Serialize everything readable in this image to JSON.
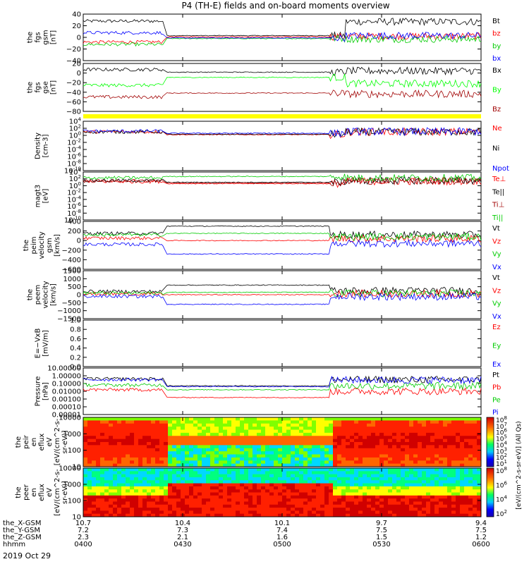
{
  "figure": {
    "title": "P4 (TH-E) fields and on-board moments overview",
    "date": "2019 Oct 29"
  },
  "time_axis": {
    "rows": [
      {
        "label": "the_X-GSM",
        "values": [
          "10.7",
          "10.4",
          "10.1",
          "9.7",
          "9.4"
        ]
      },
      {
        "label": "the_Y-GSM",
        "values": [
          "7.2",
          "7.3",
          "7.4",
          "7.5",
          "7.5"
        ]
      },
      {
        "label": "the_Z-GSM",
        "values": [
          "2.3",
          "2.1",
          "1.6",
          "1.5",
          "1.2"
        ]
      },
      {
        "label": "hhmm",
        "values": [
          "0400",
          "0430",
          "0500",
          "0530",
          "0600"
        ]
      }
    ]
  },
  "colorbars": [
    {
      "label": "[eV/(cm^2-s-sr-eV)] (All Qs)",
      "ticks": [
        "10^8",
        "10^7",
        "10^6",
        "10^5",
        "10^4",
        "10^3",
        "10^2",
        "10^1"
      ]
    },
    {
      "label": "",
      "ticks": [
        "10^8",
        "10^6",
        "10^4",
        "10^2"
      ]
    }
  ],
  "chart_data": [
    {
      "type": "line",
      "ylabel": [
        "the",
        "fgs",
        "gsm",
        "[nT]"
      ],
      "ylim": [
        -40,
        40
      ],
      "yticks": [
        "40",
        "20",
        "0",
        "−20",
        "−40"
      ],
      "x": [
        "0400",
        "0430",
        "0500",
        "0530",
        "0600"
      ],
      "series": [
        {
          "name": "Bt",
          "color": "#000000",
          "segments": [
            [
              0,
              0.2,
              28
            ],
            [
              0.21,
              0.66,
              3
            ],
            [
              0.66,
              1,
              27
            ]
          ]
        },
        {
          "name": "bz",
          "color": "#ff0000",
          "segments": [
            [
              0,
              0.2,
              -8
            ],
            [
              0.21,
              0.66,
              1
            ],
            [
              0.66,
              1,
              2
            ]
          ]
        },
        {
          "name": "by",
          "color": "#00cc00",
          "segments": [
            [
              0,
              0.2,
              -12
            ],
            [
              0.21,
              0.66,
              -2
            ],
            [
              0.66,
              1,
              -3
            ]
          ]
        },
        {
          "name": "bx",
          "color": "#0000ff",
          "segments": [
            [
              0,
              0.2,
              8
            ],
            [
              0.21,
              0.66,
              -1
            ],
            [
              0.66,
              1,
              3
            ]
          ]
        }
      ]
    },
    {
      "type": "line",
      "ylabel": [
        "the",
        "fgs",
        "gse",
        "[nT]"
      ],
      "ylim": [
        -90,
        20
      ],
      "yticks": [
        "20",
        "0",
        "−20",
        "−40",
        "−60",
        "−80"
      ],
      "x": [
        "0400",
        "0430",
        "0500",
        "0530",
        "0600"
      ],
      "series": [
        {
          "name": "Bx",
          "color": "#000000",
          "segments": [
            [
              0,
              0.2,
              6
            ],
            [
              0.21,
              0.66,
              0
            ],
            [
              0.66,
              1,
              3
            ]
          ]
        },
        {
          "name": "By",
          "color": "#00ff00",
          "segments": [
            [
              0,
              0.2,
              -30
            ],
            [
              0.21,
              0.66,
              -12
            ],
            [
              0.66,
              1,
              -26
            ]
          ]
        },
        {
          "name": "Bz",
          "color": "#a00000",
          "segments": [
            [
              0,
              0.2,
              -57
            ],
            [
              0.21,
              0.66,
              -48
            ],
            [
              0.66,
              1,
              -50
            ]
          ]
        }
      ]
    },
    {
      "type": "line",
      "ylabel": [
        "Density",
        "[cm-3]"
      ],
      "ylim": [
        -10,
        4
      ],
      "log": true,
      "yticks": [
        "10^4",
        "10^2",
        "10^0",
        "10^-2",
        "10^-4",
        "10^-6",
        "10^-8",
        "10^-10"
      ],
      "x": [
        "0400",
        "0430",
        "0500",
        "0530",
        "0600"
      ],
      "series": [
        {
          "name": "Ne",
          "color": "#ff0000",
          "segments": [
            [
              0,
              0.2,
              1
            ],
            [
              0.21,
              0.66,
              0.2
            ],
            [
              0.66,
              1,
              1
            ]
          ]
        },
        {
          "name": "Ni",
          "color": "#000000",
          "segments": [
            [
              0,
              0.2,
              1
            ],
            [
              0.21,
              0.66,
              0.3
            ],
            [
              0.66,
              1,
              1
            ]
          ]
        },
        {
          "name": "Npot",
          "color": "#0000ff",
          "segments": [
            [
              0,
              0.2,
              1.2
            ],
            [
              0.21,
              0.66,
              0.6
            ],
            [
              0.66,
              1,
              1.1
            ]
          ]
        }
      ]
    },
    {
      "type": "line",
      "ylabel": [
        "magt3",
        "[eV]"
      ],
      "ylim": [
        -10,
        4
      ],
      "log": true,
      "yticks": [
        "10^4",
        "10^2",
        "10^0",
        "10^-2",
        "10^-4",
        "10^-6",
        "10^-8",
        "10^-10"
      ],
      "x": [
        "0400",
        "0430",
        "0500",
        "0530",
        "0600"
      ],
      "series": [
        {
          "name": "Te⊥",
          "color": "#ff0000",
          "segments": [
            [
              0,
              0.2,
              1.2
            ],
            [
              0.21,
              0.66,
              0.6
            ],
            [
              0.66,
              1,
              1.3
            ]
          ]
        },
        {
          "name": "Te||",
          "color": "#000000",
          "segments": [
            [
              0,
              0.2,
              1.5
            ],
            [
              0.21,
              0.66,
              1.0
            ],
            [
              0.66,
              1,
              1.5
            ]
          ]
        },
        {
          "name": "Ti⊥",
          "color": "#a00000",
          "segments": [
            [
              0,
              0.2,
              1.4
            ],
            [
              0.21,
              0.66,
              0.8
            ],
            [
              0.66,
              1,
              1.4
            ]
          ]
        },
        {
          "name": "Ti||",
          "color": "#00cc00",
          "segments": [
            [
              0,
              0.2,
              2.3
            ],
            [
              0.21,
              0.66,
              2.7
            ],
            [
              0.66,
              1,
              2.3
            ]
          ]
        }
      ]
    },
    {
      "type": "line",
      "ylabel": [
        "the",
        "peim",
        "velocity",
        "gsm",
        "[km/s]"
      ],
      "ylim": [
        -600,
        400
      ],
      "yticks": [
        "400",
        "200",
        "0",
        "−200",
        "−400",
        "−600"
      ],
      "x": [
        "0400",
        "0430",
        "0500",
        "0530",
        "0600"
      ],
      "series": [
        {
          "name": "Vt",
          "color": "#000000",
          "segments": [
            [
              0,
              0.2,
              150
            ],
            [
              0.21,
              0.62,
              300
            ],
            [
              0.62,
              1,
              120
            ]
          ]
        },
        {
          "name": "Vz",
          "color": "#ff0000",
          "segments": [
            [
              0,
              0.2,
              50
            ],
            [
              0.21,
              0.62,
              0
            ],
            [
              0.62,
              1,
              40
            ]
          ]
        },
        {
          "name": "Vy",
          "color": "#00cc00",
          "segments": [
            [
              0,
              0.2,
              120
            ],
            [
              0.21,
              0.62,
              150
            ],
            [
              0.62,
              1,
              80
            ]
          ]
        },
        {
          "name": "Vx",
          "color": "#0000ff",
          "segments": [
            [
              0,
              0.2,
              -80
            ],
            [
              0.21,
              0.62,
              -280
            ],
            [
              0.62,
              1,
              -60
            ]
          ]
        }
      ]
    },
    {
      "type": "line",
      "ylabel": [
        "the",
        "peem",
        "velocity",
        "[km/s]"
      ],
      "ylim": [
        -1500,
        1500
      ],
      "yticks": [
        "1500",
        "1000",
        "500",
        "0",
        "−500",
        "−1000",
        "−1500"
      ],
      "x": [
        "0400",
        "0430",
        "0500",
        "0530",
        "0600"
      ],
      "series": [
        {
          "name": "Vt",
          "color": "#000000",
          "segments": [
            [
              0,
              0.2,
              200
            ],
            [
              0.21,
              0.62,
              600
            ],
            [
              0.62,
              1,
              250
            ]
          ]
        },
        {
          "name": "Vz",
          "color": "#ff0000",
          "segments": [
            [
              0,
              0.2,
              50
            ],
            [
              0.21,
              0.62,
              0
            ],
            [
              0.62,
              1,
              60
            ]
          ]
        },
        {
          "name": "Vy",
          "color": "#00cc00",
          "segments": [
            [
              0,
              0.2,
              100
            ],
            [
              0.21,
              0.62,
              150
            ],
            [
              0.62,
              1,
              80
            ]
          ]
        },
        {
          "name": "Vx",
          "color": "#0000ff",
          "segments": [
            [
              0,
              0.2,
              -100
            ],
            [
              0.21,
              0.62,
              -600
            ],
            [
              0.62,
              1,
              -120
            ]
          ]
        }
      ]
    },
    {
      "type": "line",
      "ylabel": [
        "E=−VxB",
        "[mV/m]"
      ],
      "ylim": [
        0,
        1
      ],
      "yticks": [
        "1.0",
        "0.8",
        "0.6",
        "0.4",
        "0.2",
        "0.0"
      ],
      "x": [
        "0400",
        "0430",
        "0500",
        "0530",
        "0600"
      ],
      "series": [
        {
          "name": "Ez",
          "color": "#ff0000",
          "segments": []
        },
        {
          "name": "Ey",
          "color": "#00cc00",
          "segments": []
        },
        {
          "name": "Ex",
          "color": "#0000ff",
          "segments": []
        }
      ]
    },
    {
      "type": "line",
      "ylabel": [
        "Pressure",
        "[nPa]"
      ],
      "ylim": [
        -5,
        1
      ],
      "log": true,
      "yticks": [
        "10.00000",
        "1.00000",
        "0.10000",
        "0.01000",
        "0.00100",
        "0.00010",
        "0.00001"
      ],
      "x": [
        "0400",
        "0430",
        "0500",
        "0530",
        "0600"
      ],
      "series": [
        {
          "name": "Pt",
          "color": "#000000",
          "segments": [
            [
              0,
              0.2,
              -0.4
            ],
            [
              0.21,
              0.62,
              -1.3
            ],
            [
              0.62,
              1,
              -0.5
            ]
          ]
        },
        {
          "name": "Pb",
          "color": "#ff0000",
          "segments": [
            [
              0,
              0.2,
              -1.8
            ],
            [
              0.21,
              0.62,
              -2.8
            ],
            [
              0.62,
              1,
              -2.0
            ]
          ]
        },
        {
          "name": "Pe",
          "color": "#00cc00",
          "segments": [
            [
              0,
              0.2,
              -1.2
            ],
            [
              0.21,
              0.62,
              -1.8
            ],
            [
              0.62,
              1,
              -1.3
            ]
          ]
        },
        {
          "name": "Pi",
          "color": "#0000ff",
          "segments": [
            [
              0,
              0.2,
              -0.5
            ],
            [
              0.21,
              0.62,
              -1.4
            ],
            [
              0.62,
              1,
              -0.55
            ]
          ]
        }
      ]
    },
    {
      "type": "heatmap",
      "ylabel": [
        "the",
        "peir",
        "en",
        "eflux",
        "eV",
        "[eV/(cm^2-s-",
        "sr-eV)]"
      ],
      "ylim": [
        10,
        10000
      ],
      "log": true,
      "yticks": [
        "10000",
        "1000",
        "100",
        "10"
      ],
      "x": [
        "0400",
        "0430",
        "0500",
        "0530",
        "0600"
      ]
    },
    {
      "type": "heatmap",
      "ylabel": [
        "the",
        "peer",
        "en",
        "eflux",
        "eV",
        "[eV/(cm^2-s-",
        "sr-eV)]"
      ],
      "ylim": [
        10,
        10000
      ],
      "log": true,
      "yticks": [
        "10000",
        "1000",
        "100",
        "10"
      ],
      "x": [
        "0400",
        "0430",
        "0500",
        "0530",
        "0600"
      ]
    }
  ]
}
